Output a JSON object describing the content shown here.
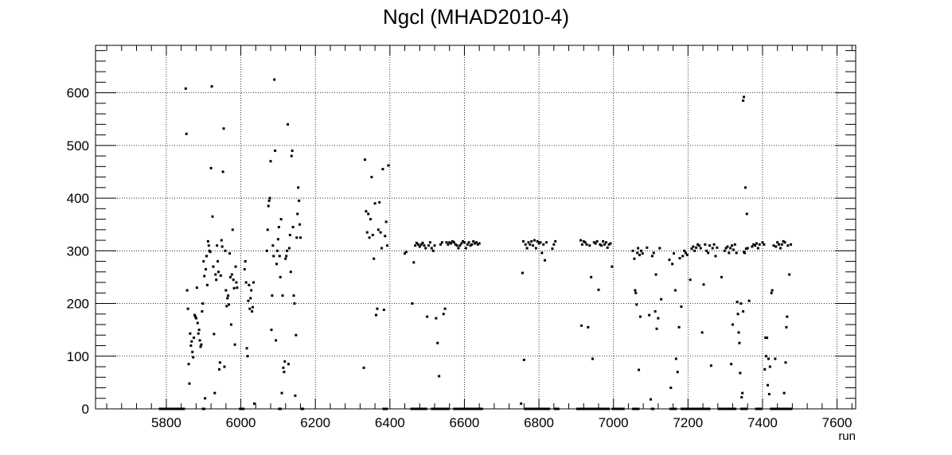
{
  "chart_data": {
    "type": "scatter",
    "title": "Ngcl (MHAD2010-4)",
    "xlabel": "run",
    "ylabel": "",
    "xlim": [
      5610,
      7650
    ],
    "ylim": [
      0,
      690
    ],
    "x_ticks": [
      5800,
      6000,
      6200,
      6400,
      6600,
      6800,
      7000,
      7200,
      7400,
      7600
    ],
    "y_ticks": [
      0,
      100,
      200,
      300,
      400,
      500,
      600
    ],
    "grid": true,
    "marker_color": "#000000",
    "points": [
      [
        5852,
        608
      ],
      [
        5854,
        522
      ],
      [
        5856,
        225
      ],
      [
        5858,
        190
      ],
      [
        5860,
        85
      ],
      [
        5862,
        48
      ],
      [
        5864,
        143
      ],
      [
        5866,
        120
      ],
      [
        5868,
        128
      ],
      [
        5870,
        108
      ],
      [
        5872,
        98
      ],
      [
        5874,
        135
      ],
      [
        5876,
        178
      ],
      [
        5878,
        175
      ],
      [
        5880,
        172
      ],
      [
        5882,
        230
      ],
      [
        5884,
        163
      ],
      [
        5886,
        143
      ],
      [
        5888,
        150
      ],
      [
        5890,
        130
      ],
      [
        5892,
        118
      ],
      [
        5894,
        122
      ],
      [
        5896,
        185
      ],
      [
        5898,
        200
      ],
      [
        5900,
        280
      ],
      [
        5902,
        252
      ],
      [
        5904,
        20
      ],
      [
        5906,
        265
      ],
      [
        5908,
        290
      ],
      [
        5910,
        235
      ],
      [
        5912,
        318
      ],
      [
        5914,
        310
      ],
      [
        5916,
        300
      ],
      [
        5918,
        298
      ],
      [
        5920,
        457
      ],
      [
        5922,
        612
      ],
      [
        5924,
        365
      ],
      [
        5926,
        270
      ],
      [
        5928,
        142
      ],
      [
        5930,
        30
      ],
      [
        5932,
        255
      ],
      [
        5934,
        245
      ],
      [
        5936,
        310
      ],
      [
        5938,
        280
      ],
      [
        5940,
        260
      ],
      [
        5942,
        75
      ],
      [
        5944,
        88
      ],
      [
        5946,
        253
      ],
      [
        5948,
        320
      ],
      [
        5950,
        308
      ],
      [
        5952,
        450
      ],
      [
        5954,
        532
      ],
      [
        5956,
        80
      ],
      [
        5958,
        300
      ],
      [
        5960,
        225
      ],
      [
        5962,
        195
      ],
      [
        5964,
        210
      ],
      [
        5966,
        215
      ],
      [
        5968,
        198
      ],
      [
        5970,
        295
      ],
      [
        5972,
        250
      ],
      [
        5974,
        160
      ],
      [
        5976,
        255
      ],
      [
        5978,
        340
      ],
      [
        5980,
        245
      ],
      [
        5982,
        229
      ],
      [
        5984,
        122
      ],
      [
        5986,
        270
      ],
      [
        5988,
        240
      ],
      [
        5990,
        230
      ],
      [
        6010,
        265
      ],
      [
        6012,
        280
      ],
      [
        6014,
        240
      ],
      [
        6016,
        115
      ],
      [
        6018,
        100
      ],
      [
        6020,
        205
      ],
      [
        6022,
        235
      ],
      [
        6024,
        190
      ],
      [
        6026,
        210
      ],
      [
        6028,
        225
      ],
      [
        6030,
        185
      ],
      [
        6032,
        193
      ],
      [
        6034,
        240
      ],
      [
        6036,
        10
      ],
      [
        6070,
        300
      ],
      [
        6072,
        340
      ],
      [
        6074,
        385
      ],
      [
        6076,
        395
      ],
      [
        6078,
        400
      ],
      [
        6080,
        470
      ],
      [
        6082,
        150
      ],
      [
        6084,
        215
      ],
      [
        6086,
        310
      ],
      [
        6088,
        290
      ],
      [
        6090,
        625
      ],
      [
        6092,
        490
      ],
      [
        6094,
        130
      ],
      [
        6096,
        275
      ],
      [
        6098,
        300
      ],
      [
        6100,
        322
      ],
      [
        6102,
        345
      ],
      [
        6104,
        290
      ],
      [
        6106,
        250
      ],
      [
        6108,
        360
      ],
      [
        6110,
        30
      ],
      [
        6112,
        215
      ],
      [
        6114,
        78
      ],
      [
        6116,
        70
      ],
      [
        6118,
        90
      ],
      [
        6120,
        285
      ],
      [
        6122,
        290
      ],
      [
        6124,
        300
      ],
      [
        6126,
        540
      ],
      [
        6128,
        85
      ],
      [
        6130,
        305
      ],
      [
        6132,
        330
      ],
      [
        6134,
        260
      ],
      [
        6136,
        480
      ],
      [
        6138,
        490
      ],
      [
        6140,
        345
      ],
      [
        6142,
        215
      ],
      [
        6144,
        200
      ],
      [
        6146,
        25
      ],
      [
        6148,
        140
      ],
      [
        6150,
        325
      ],
      [
        6152,
        370
      ],
      [
        6154,
        420
      ],
      [
        6156,
        395
      ],
      [
        6158,
        350
      ],
      [
        6160,
        325
      ],
      [
        6330,
        78
      ],
      [
        6333,
        473
      ],
      [
        6336,
        375
      ],
      [
        6339,
        335
      ],
      [
        6342,
        370
      ],
      [
        6345,
        325
      ],
      [
        6348,
        360
      ],
      [
        6351,
        440
      ],
      [
        6354,
        330
      ],
      [
        6357,
        285
      ],
      [
        6360,
        390
      ],
      [
        6363,
        178
      ],
      [
        6366,
        190
      ],
      [
        6369,
        340
      ],
      [
        6372,
        392
      ],
      [
        6375,
        335
      ],
      [
        6378,
        305
      ],
      [
        6381,
        455
      ],
      [
        6384,
        188
      ],
      [
        6387,
        328
      ],
      [
        6390,
        355
      ],
      [
        6393,
        310
      ],
      [
        6396,
        462
      ],
      [
        6440,
        295
      ],
      [
        6444,
        298
      ],
      [
        6460,
        200
      ],
      [
        6464,
        278
      ],
      [
        6468,
        310
      ],
      [
        6472,
        315
      ],
      [
        6476,
        312
      ],
      [
        6480,
        308
      ],
      [
        6484,
        312
      ],
      [
        6488,
        315
      ],
      [
        6492,
        310
      ],
      [
        6496,
        305
      ],
      [
        6500,
        175
      ],
      [
        6504,
        310
      ],
      [
        6508,
        316
      ],
      [
        6512,
        305
      ],
      [
        6516,
        300
      ],
      [
        6520,
        310
      ],
      [
        6524,
        172
      ],
      [
        6528,
        125
      ],
      [
        6532,
        62
      ],
      [
        6536,
        312
      ],
      [
        6540,
        316
      ],
      [
        6544,
        180
      ],
      [
        6548,
        190
      ],
      [
        6552,
        316
      ],
      [
        6556,
        312
      ],
      [
        6560,
        316
      ],
      [
        6564,
        314
      ],
      [
        6568,
        318
      ],
      [
        6572,
        316
      ],
      [
        6576,
        312
      ],
      [
        6580,
        310
      ],
      [
        6584,
        305
      ],
      [
        6588,
        310
      ],
      [
        6592,
        314
      ],
      [
        6596,
        318
      ],
      [
        6600,
        316
      ],
      [
        6604,
        305
      ],
      [
        6608,
        312
      ],
      [
        6612,
        316
      ],
      [
        6616,
        310
      ],
      [
        6620,
        312
      ],
      [
        6624,
        318
      ],
      [
        6628,
        314
      ],
      [
        6632,
        316
      ],
      [
        6636,
        312
      ],
      [
        6640,
        314
      ],
      [
        6752,
        10
      ],
      [
        6756,
        258
      ],
      [
        6758,
        318
      ],
      [
        6760,
        93
      ],
      [
        6764,
        312
      ],
      [
        6768,
        305
      ],
      [
        6772,
        316
      ],
      [
        6776,
        312
      ],
      [
        6780,
        318
      ],
      [
        6784,
        310
      ],
      [
        6788,
        320
      ],
      [
        6792,
        305
      ],
      [
        6796,
        318
      ],
      [
        6800,
        314
      ],
      [
        6804,
        316
      ],
      [
        6808,
        296
      ],
      [
        6812,
        312
      ],
      [
        6816,
        282
      ],
      [
        6820,
        316
      ],
      [
        6836,
        304
      ],
      [
        6840,
        312
      ],
      [
        6844,
        318
      ],
      [
        6912,
        320
      ],
      [
        6914,
        158
      ],
      [
        6916,
        312
      ],
      [
        6920,
        318
      ],
      [
        6924,
        316
      ],
      [
        6928,
        312
      ],
      [
        6932,
        155
      ],
      [
        6936,
        310
      ],
      [
        6940,
        250
      ],
      [
        6944,
        95
      ],
      [
        6948,
        316
      ],
      [
        6952,
        314
      ],
      [
        6956,
        318
      ],
      [
        6960,
        226
      ],
      [
        6964,
        312
      ],
      [
        6968,
        310
      ],
      [
        6972,
        318
      ],
      [
        6976,
        312
      ],
      [
        6980,
        316
      ],
      [
        6984,
        306
      ],
      [
        6988,
        312
      ],
      [
        6992,
        314
      ],
      [
        6996,
        270
      ],
      [
        7052,
        300
      ],
      [
        7056,
        285
      ],
      [
        7058,
        225
      ],
      [
        7060,
        220
      ],
      [
        7062,
        198
      ],
      [
        7064,
        296
      ],
      [
        7066,
        305
      ],
      [
        7068,
        74
      ],
      [
        7070,
        292
      ],
      [
        7072,
        175
      ],
      [
        7074,
        300
      ],
      [
        7078,
        295
      ],
      [
        7090,
        306
      ],
      [
        7096,
        178
      ],
      [
        7100,
        18
      ],
      [
        7104,
        290
      ],
      [
        7108,
        296
      ],
      [
        7112,
        185
      ],
      [
        7114,
        255
      ],
      [
        7116,
        152
      ],
      [
        7120,
        172
      ],
      [
        7124,
        305
      ],
      [
        7128,
        208
      ],
      [
        7150,
        283
      ],
      [
        7154,
        40
      ],
      [
        7158,
        275
      ],
      [
        7162,
        295
      ],
      [
        7166,
        225
      ],
      [
        7168,
        95
      ],
      [
        7172,
        70
      ],
      [
        7176,
        155
      ],
      [
        7178,
        286
      ],
      [
        7182,
        194
      ],
      [
        7186,
        290
      ],
      [
        7190,
        300
      ],
      [
        7194,
        296
      ],
      [
        7198,
        292
      ],
      [
        7206,
        245
      ],
      [
        7210,
        304
      ],
      [
        7214,
        308
      ],
      [
        7218,
        300
      ],
      [
        7222,
        306
      ],
      [
        7226,
        312
      ],
      [
        7230,
        310
      ],
      [
        7234,
        305
      ],
      [
        7238,
        145
      ],
      [
        7242,
        236
      ],
      [
        7246,
        312
      ],
      [
        7250,
        300
      ],
      [
        7254,
        296
      ],
      [
        7258,
        310
      ],
      [
        7262,
        82
      ],
      [
        7266,
        305
      ],
      [
        7270,
        312
      ],
      [
        7274,
        290
      ],
      [
        7278,
        306
      ],
      [
        7290,
        250
      ],
      [
        7298,
        300
      ],
      [
        7302,
        305
      ],
      [
        7306,
        308
      ],
      [
        7310,
        296
      ],
      [
        7314,
        305
      ],
      [
        7316,
        85
      ],
      [
        7318,
        310
      ],
      [
        7320,
        160
      ],
      [
        7322,
        302
      ],
      [
        7326,
        312
      ],
      [
        7330,
        296
      ],
      [
        7332,
        203
      ],
      [
        7334,
        180
      ],
      [
        7336,
        145
      ],
      [
        7338,
        125
      ],
      [
        7340,
        68
      ],
      [
        7342,
        200
      ],
      [
        7344,
        22
      ],
      [
        7346,
        30
      ],
      [
        7348,
        185
      ],
      [
        7350,
        298
      ],
      [
        7352,
        296
      ],
      [
        7356,
        304
      ],
      [
        7360,
        305
      ],
      [
        7348,
        585
      ],
      [
        7350,
        592
      ],
      [
        7354,
        420
      ],
      [
        7358,
        370
      ],
      [
        7364,
        205
      ],
      [
        7372,
        308
      ],
      [
        7376,
        312
      ],
      [
        7380,
        310
      ],
      [
        7384,
        314
      ],
      [
        7388,
        305
      ],
      [
        7392,
        312
      ],
      [
        7400,
        316
      ],
      [
        7404,
        312
      ],
      [
        7406,
        75
      ],
      [
        7408,
        135
      ],
      [
        7410,
        100
      ],
      [
        7412,
        135
      ],
      [
        7414,
        45
      ],
      [
        7416,
        95
      ],
      [
        7418,
        28
      ],
      [
        7420,
        80
      ],
      [
        7424,
        220
      ],
      [
        7426,
        225
      ],
      [
        7430,
        310
      ],
      [
        7434,
        95
      ],
      [
        7436,
        308
      ],
      [
        7440,
        316
      ],
      [
        7444,
        312
      ],
      [
        7448,
        305
      ],
      [
        7452,
        312
      ],
      [
        7456,
        318
      ],
      [
        7458,
        30
      ],
      [
        7460,
        316
      ],
      [
        7462,
        88
      ],
      [
        7464,
        155
      ],
      [
        7466,
        175
      ],
      [
        7468,
        310
      ],
      [
        7472,
        255
      ],
      [
        7476,
        312
      ]
    ],
    "zero_segments": [
      [
        5780,
        5850
      ],
      [
        5895,
        5905
      ],
      [
        5995,
        6010
      ],
      [
        6100,
        6110
      ],
      [
        6160,
        6170
      ],
      [
        6380,
        6395
      ],
      [
        6455,
        6500
      ],
      [
        6510,
        6560
      ],
      [
        6570,
        6650
      ],
      [
        6760,
        6830
      ],
      [
        6840,
        6855
      ],
      [
        6900,
        6990
      ],
      [
        6995,
        7030
      ],
      [
        7050,
        7070
      ],
      [
        7100,
        7110
      ],
      [
        7150,
        7170
      ],
      [
        7180,
        7260
      ],
      [
        7280,
        7330
      ],
      [
        7340,
        7360
      ],
      [
        7380,
        7400
      ],
      [
        7420,
        7480
      ]
    ]
  }
}
